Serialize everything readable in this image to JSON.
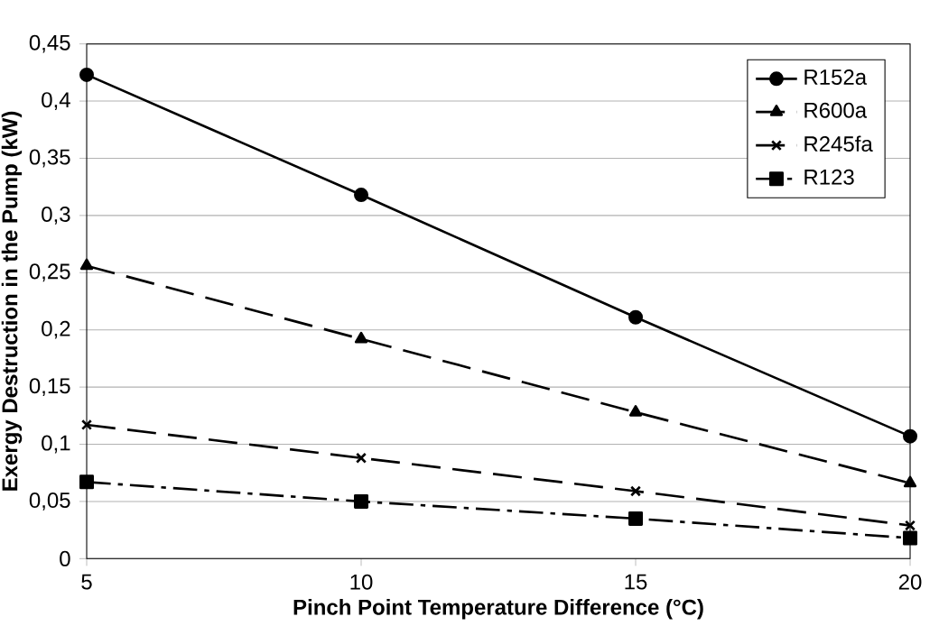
{
  "chart_data": {
    "type": "line",
    "xlabel": "Pinch Point Temperature Difference (°C)",
    "ylabel": "Exergy Destruction in the Pump (kW)",
    "x": [
      5,
      10,
      15,
      20
    ],
    "series": [
      {
        "name": "R152a",
        "color": "#000000",
        "marker": "circle",
        "line_style": "solid",
        "values": [
          0.423,
          0.318,
          0.211,
          0.107
        ]
      },
      {
        "name": "R600a",
        "color": "#000000",
        "marker": "triangle",
        "line_style": "dashed",
        "values": [
          0.256,
          0.192,
          0.128,
          0.066
        ]
      },
      {
        "name": "R245fa",
        "color": "#000000",
        "marker": "cross",
        "line_style": "dashed",
        "values": [
          0.117,
          0.088,
          0.059,
          0.029
        ]
      },
      {
        "name": "R123",
        "color": "#000000",
        "marker": "square",
        "line_style": "dashdot",
        "values": [
          0.067,
          0.05,
          0.035,
          0.018
        ]
      }
    ],
    "xlim": [
      5,
      20
    ],
    "xticks": [
      5,
      10,
      15,
      20
    ],
    "ylim": [
      0,
      0.45
    ],
    "yticks": [
      0,
      {
        "value": 0.05,
        "label": "0,05"
      },
      {
        "value": 0.1,
        "label": "0,1"
      },
      {
        "value": 0.15,
        "label": "0,15"
      },
      {
        "value": 0.2,
        "label": "0,2"
      },
      {
        "value": 0.25,
        "label": "0,25"
      },
      {
        "value": 0.3,
        "label": "0,3"
      },
      {
        "value": 0.35,
        "label": "0,35"
      },
      {
        "value": 0.4,
        "label": "0,4"
      },
      {
        "value": 0.45,
        "label": "0,45"
      }
    ],
    "grid": "y",
    "legend": "top right"
  }
}
